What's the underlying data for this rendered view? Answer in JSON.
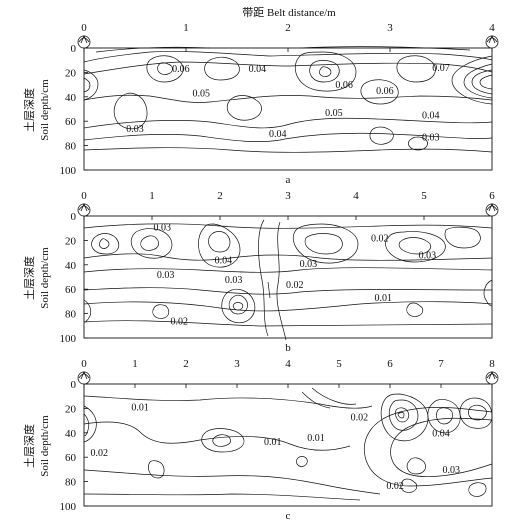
{
  "figure": {
    "top_axis_title": "带距 Belt distance/m",
    "y_axis_title_cn": "土层深度",
    "y_axis_title_en": "Soil depth/cm"
  },
  "chart_data": [
    {
      "type": "contour",
      "panel": "a",
      "caption": "a",
      "xlim": [
        0,
        4
      ],
      "ylim": [
        0,
        100
      ],
      "x_ticks": [
        "0",
        "1",
        "2",
        "3",
        "4"
      ],
      "y_ticks": [
        "0",
        "20",
        "40",
        "60",
        "80",
        "100"
      ],
      "contour_labels": [
        {
          "text": "0.06",
          "x": 0.95,
          "y": 17
        },
        {
          "text": "0.04",
          "x": 1.7,
          "y": 17
        },
        {
          "text": "0.05",
          "x": 1.15,
          "y": 37
        },
        {
          "text": "0.03",
          "x": 0.5,
          "y": 66
        },
        {
          "text": "0.04",
          "x": 1.9,
          "y": 70
        },
        {
          "text": "0.06",
          "x": 2.55,
          "y": 30
        },
        {
          "text": "0.06",
          "x": 2.95,
          "y": 35
        },
        {
          "text": "0.05",
          "x": 2.45,
          "y": 53
        },
        {
          "text": "0.07",
          "x": 3.5,
          "y": 16
        },
        {
          "text": "0.04",
          "x": 3.4,
          "y": 55
        },
        {
          "text": "0.03",
          "x": 3.4,
          "y": 73
        }
      ]
    },
    {
      "type": "contour",
      "panel": "b",
      "caption": "b",
      "xlim": [
        0,
        6
      ],
      "ylim": [
        0,
        100
      ],
      "x_ticks": [
        "0",
        "1",
        "2",
        "3",
        "4",
        "5",
        "6"
      ],
      "y_ticks": [
        "0",
        "20",
        "40",
        "60",
        "80",
        "100"
      ],
      "contour_labels": [
        {
          "text": "0.03",
          "x": 1.15,
          "y": 9
        },
        {
          "text": "0.04",
          "x": 2.05,
          "y": 36
        },
        {
          "text": "0.03",
          "x": 1.2,
          "y": 48
        },
        {
          "text": "0.03",
          "x": 2.2,
          "y": 52
        },
        {
          "text": "0.03",
          "x": 3.3,
          "y": 39
        },
        {
          "text": "0.02",
          "x": 3.1,
          "y": 56
        },
        {
          "text": "0.02",
          "x": 1.4,
          "y": 86
        },
        {
          "text": "0.02",
          "x": 4.35,
          "y": 18
        },
        {
          "text": "0.03",
          "x": 5.05,
          "y": 32
        },
        {
          "text": "0.01",
          "x": 4.4,
          "y": 67
        }
      ]
    },
    {
      "type": "contour",
      "panel": "c",
      "caption": "c",
      "xlim": [
        0,
        8
      ],
      "ylim": [
        0,
        100
      ],
      "x_ticks": [
        "0",
        "1",
        "2",
        "3",
        "4",
        "5",
        "6",
        "7",
        "8"
      ],
      "y_ticks": [
        "0",
        "20",
        "40",
        "60",
        "80",
        "100"
      ],
      "contour_labels": [
        {
          "text": "0.01",
          "x": 1.1,
          "y": 19
        },
        {
          "text": "0.02",
          "x": 0.3,
          "y": 56
        },
        {
          "text": "0.01",
          "x": 3.7,
          "y": 47
        },
        {
          "text": "0.01",
          "x": 4.55,
          "y": 44
        },
        {
          "text": "0.02",
          "x": 5.4,
          "y": 27
        },
        {
          "text": "0.04",
          "x": 7.0,
          "y": 40
        },
        {
          "text": "0.03",
          "x": 7.2,
          "y": 70
        },
        {
          "text": "0.02",
          "x": 6.1,
          "y": 83
        }
      ]
    }
  ]
}
